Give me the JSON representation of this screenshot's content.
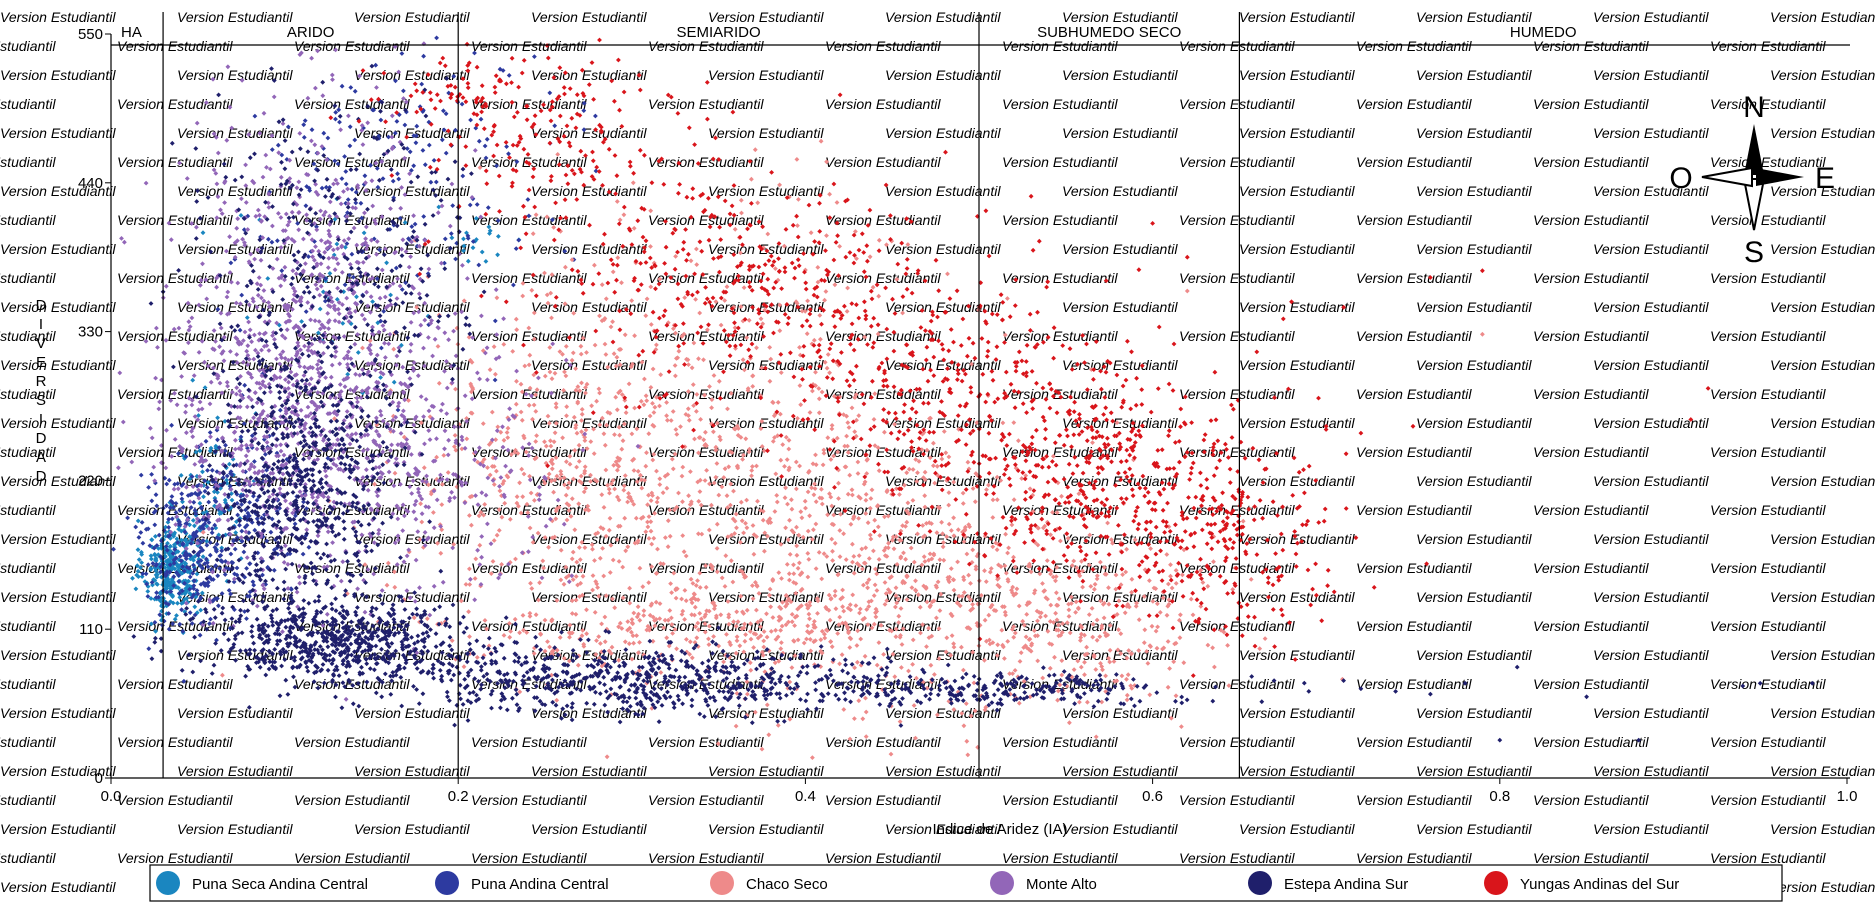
{
  "chart_data": {
    "type": "scatter",
    "title": "",
    "xlabel": "Indice de Aridez (IA)",
    "ylabel": "DIVERSIDAD",
    "xlim": [
      0.0,
      1.0
    ],
    "ylim": [
      0,
      550
    ],
    "x_ticks": [
      "0.0",
      "0.2",
      "0.4",
      "0.6",
      "0.8",
      "1.0"
    ],
    "y_ticks": [
      "0",
      "110",
      "220",
      "330",
      "440",
      "550"
    ],
    "grid": false,
    "legend_position": "bottom",
    "zones": [
      {
        "label": "HA",
        "from": 0.0,
        "to": 0.03
      },
      {
        "label": "ARIDO",
        "from": 0.03,
        "to": 0.2
      },
      {
        "label": "SEMIARIDO",
        "from": 0.2,
        "to": 0.5
      },
      {
        "label": "SUBHUMEDO SECO",
        "from": 0.5,
        "to": 0.65
      },
      {
        "label": "HUMEDO",
        "from": 0.65,
        "to": 1.0
      }
    ],
    "watermark": "Version Estudiantil",
    "compass": {
      "north": "N",
      "south": "S",
      "east": "E",
      "west": "O"
    },
    "series": [
      {
        "name": "Puna Seca Andina Central",
        "color": "#1a86c0",
        "clusters": [
          {
            "x": 0.035,
            "y": 155,
            "sx": 0.008,
            "sy": 18,
            "n": 320
          },
          {
            "x": 0.06,
            "y": 210,
            "sx": 0.012,
            "sy": 30,
            "n": 90
          },
          {
            "x": 0.13,
            "y": 340,
            "sx": 0.03,
            "sy": 40,
            "n": 40
          },
          {
            "x": 0.21,
            "y": 400,
            "sx": 0.015,
            "sy": 10,
            "n": 20
          }
        ]
      },
      {
        "name": "Puna Andina Central",
        "color": "#2d3aa0",
        "clusters": [
          {
            "x": 0.045,
            "y": 170,
            "sx": 0.015,
            "sy": 30,
            "n": 260
          },
          {
            "x": 0.08,
            "y": 200,
            "sx": 0.02,
            "sy": 35,
            "n": 170
          },
          {
            "x": 0.15,
            "y": 420,
            "sx": 0.04,
            "sy": 55,
            "n": 160
          },
          {
            "x": 0.2,
            "y": 480,
            "sx": 0.04,
            "sy": 25,
            "n": 60
          }
        ]
      },
      {
        "name": "Chaco Seco",
        "color": "#ee8a8a",
        "clusters": [
          {
            "x": 0.26,
            "y": 230,
            "sx": 0.05,
            "sy": 55,
            "n": 500
          },
          {
            "x": 0.37,
            "y": 190,
            "sx": 0.06,
            "sy": 75,
            "n": 550
          },
          {
            "x": 0.47,
            "y": 150,
            "sx": 0.05,
            "sy": 55,
            "n": 450
          },
          {
            "x": 0.56,
            "y": 120,
            "sx": 0.04,
            "sy": 35,
            "n": 300
          },
          {
            "x": 0.32,
            "y": 110,
            "sx": 0.06,
            "sy": 15,
            "n": 250
          },
          {
            "x": 0.35,
            "y": 360,
            "sx": 0.07,
            "sy": 45,
            "n": 150
          }
        ]
      },
      {
        "name": "Monte Alto",
        "color": "#9266b8",
        "clusters": [
          {
            "x": 0.12,
            "y": 330,
            "sx": 0.04,
            "sy": 80,
            "n": 950
          },
          {
            "x": 0.18,
            "y": 240,
            "sx": 0.04,
            "sy": 50,
            "n": 280
          },
          {
            "x": 0.08,
            "y": 240,
            "sx": 0.03,
            "sy": 55,
            "n": 250
          }
        ]
      },
      {
        "name": "Estepa Andina Sur",
        "color": "#1f1f6b",
        "clusters": [
          {
            "x": 0.11,
            "y": 210,
            "sx": 0.025,
            "sy": 50,
            "n": 650
          },
          {
            "x": 0.13,
            "y": 100,
            "sx": 0.04,
            "sy": 15,
            "n": 650
          },
          {
            "x": 0.3,
            "y": 72,
            "sx": 0.07,
            "sy": 12,
            "n": 650
          },
          {
            "x": 0.5,
            "y": 66,
            "sx": 0.06,
            "sy": 6,
            "n": 250
          },
          {
            "x": 0.13,
            "y": 380,
            "sx": 0.04,
            "sy": 60,
            "n": 300
          }
        ]
      },
      {
        "name": "Yungas Andinas del Sur",
        "color": "#d9151b",
        "clusters": [
          {
            "x": 0.26,
            "y": 470,
            "sx": 0.04,
            "sy": 35,
            "n": 180
          },
          {
            "x": 0.36,
            "y": 360,
            "sx": 0.06,
            "sy": 40,
            "n": 350
          },
          {
            "x": 0.48,
            "y": 290,
            "sx": 0.05,
            "sy": 45,
            "n": 350
          },
          {
            "x": 0.57,
            "y": 220,
            "sx": 0.05,
            "sy": 40,
            "n": 450
          },
          {
            "x": 0.64,
            "y": 170,
            "sx": 0.03,
            "sy": 35,
            "n": 200
          },
          {
            "x": 0.2,
            "y": 505,
            "sx": 0.03,
            "sy": 15,
            "n": 60
          }
        ]
      }
    ],
    "outliers": [
      {
        "series": 4,
        "x": 0.67,
        "y": 72
      },
      {
        "series": 4,
        "x": 0.69,
        "y": 64
      },
      {
        "series": 4,
        "x": 0.71,
        "y": 72
      },
      {
        "series": 4,
        "x": 0.72,
        "y": 66
      },
      {
        "series": 4,
        "x": 0.74,
        "y": 64
      },
      {
        "series": 4,
        "x": 0.76,
        "y": 62
      },
      {
        "series": 4,
        "x": 0.78,
        "y": 70
      },
      {
        "series": 4,
        "x": 0.81,
        "y": 82
      },
      {
        "series": 4,
        "x": 0.8,
        "y": 28
      },
      {
        "series": 4,
        "x": 0.85,
        "y": 60
      },
      {
        "series": 4,
        "x": 0.88,
        "y": 28
      },
      {
        "series": 4,
        "x": 0.94,
        "y": 68
      },
      {
        "series": 4,
        "x": 0.95,
        "y": 70
      },
      {
        "series": 4,
        "x": 0.98,
        "y": 70
      },
      {
        "series": 5,
        "x": 0.68,
        "y": 352
      },
      {
        "series": 5,
        "x": 0.71,
        "y": 348
      },
      {
        "series": 5,
        "x": 0.7,
        "y": 260
      },
      {
        "series": 5,
        "x": 0.72,
        "y": 255
      },
      {
        "series": 5,
        "x": 0.76,
        "y": 370
      },
      {
        "series": 5,
        "x": 0.79,
        "y": 375
      },
      {
        "series": 5,
        "x": 0.75,
        "y": 260
      },
      {
        "series": 5,
        "x": 0.92,
        "y": 288
      },
      {
        "series": 5,
        "x": 0.91,
        "y": 265
      },
      {
        "series": 5,
        "x": 0.66,
        "y": 315
      },
      {
        "series": 5,
        "x": 0.42,
        "y": 505
      },
      {
        "series": 5,
        "x": 0.53,
        "y": 430
      },
      {
        "series": 5,
        "x": 0.6,
        "y": 410
      },
      {
        "series": 5,
        "x": 0.62,
        "y": 385
      },
      {
        "series": 2,
        "x": 0.79,
        "y": 328
      },
      {
        "series": 2,
        "x": 0.62,
        "y": 360
      }
    ]
  }
}
